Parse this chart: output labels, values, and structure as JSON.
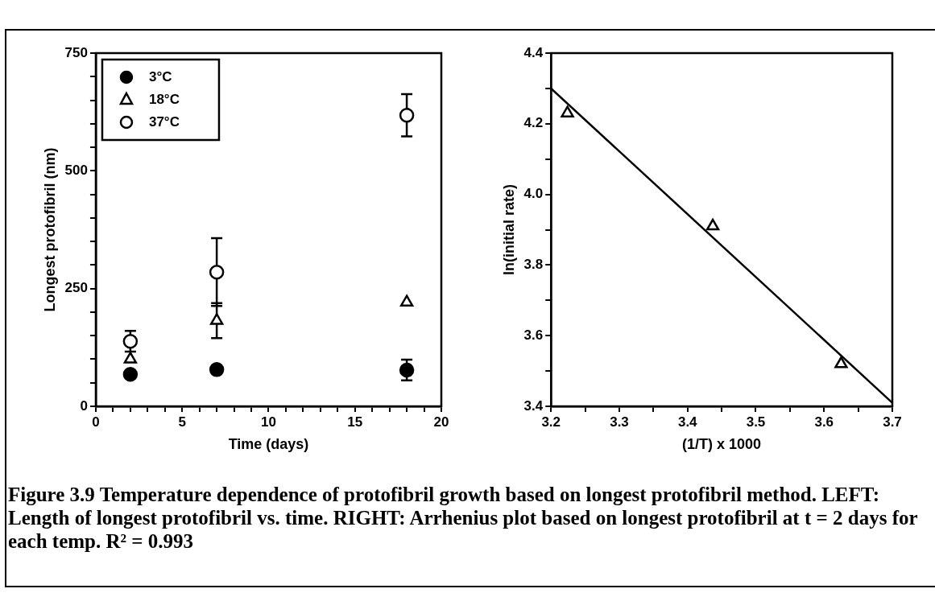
{
  "chart_data": [
    {
      "type": "scatter",
      "xlabel": "Time (days)",
      "ylabel": "Longest protofibril (nm)",
      "xlim": [
        0,
        20
      ],
      "ylim": [
        0,
        750
      ],
      "xticks": [
        0,
        {
          "value": 1,
          "label": null
        },
        {
          "value": 2,
          "label": null
        },
        {
          "value": 3,
          "label": null
        },
        {
          "value": 4,
          "label": null
        },
        5,
        {
          "value": 6,
          "label": null
        },
        {
          "value": 7,
          "label": null
        },
        {
          "value": 8,
          "label": null
        },
        {
          "value": 9,
          "label": null
        },
        10,
        {
          "value": 11,
          "label": null
        },
        {
          "value": 12,
          "label": null
        },
        {
          "value": 13,
          "label": null
        },
        {
          "value": 14,
          "label": null
        },
        15,
        {
          "value": 16,
          "label": null
        },
        {
          "value": 17,
          "label": null
        },
        {
          "value": 18,
          "label": null
        },
        {
          "value": 19,
          "label": null
        },
        20
      ],
      "yticks": [
        0,
        {
          "value": 50,
          "label": null
        },
        {
          "value": 100,
          "label": null
        },
        {
          "value": 150,
          "label": null
        },
        {
          "value": 200,
          "label": null
        },
        250,
        {
          "value": 300,
          "label": null
        },
        {
          "value": 350,
          "label": null
        },
        {
          "value": 400,
          "label": null
        },
        {
          "value": 450,
          "label": null
        },
        500,
        {
          "value": 550,
          "label": null
        },
        {
          "value": 600,
          "label": null
        },
        {
          "value": 650,
          "label": null
        },
        {
          "value": 700,
          "label": null
        },
        750
      ],
      "grid": false,
      "legend": "top left",
      "x": [
        2,
        7,
        18
      ],
      "series": [
        {
          "name": "3°C",
          "color": "#000000",
          "marker": "circle",
          "values": [
            68,
            78,
            77
          ],
          "errors": [
            null,
            null,
            22
          ]
        },
        {
          "name": "18°C",
          "color": "#000000",
          "marker": "triangle",
          "values": [
            100,
            182,
            221
          ],
          "errors": [
            null,
            37,
            null
          ]
        },
        {
          "name": "37°C",
          "color": "#000000",
          "marker": "circle",
          "values": [
            138,
            285,
            618
          ],
          "errors": [
            22,
            72,
            45
          ]
        }
      ],
      "annotations": [
        "Figure 3.9  Temperature dependence of protofibril growth based on longest protofibril method.  LEFT: Length of longest protofibril vs. time.  RIGHT: Arrhenius plot based on longest protofibril at t = 2 days for each temp.  R² = 0.993"
      ]
    },
    {
      "type": "scatter",
      "xlabel": "(1/T) x 1000",
      "ylabel": "ln(initial rate)",
      "xlim": [
        3.2,
        3.7
      ],
      "ylim": [
        3.4,
        4.4
      ],
      "xticks": [
        3.2,
        {
          "value": 3.25,
          "label": null
        },
        3.3,
        {
          "value": 3.35,
          "label": null
        },
        3.4,
        {
          "value": 3.45,
          "label": null
        },
        3.5,
        {
          "value": 3.55,
          "label": null
        },
        3.6,
        {
          "value": 3.65,
          "label": null
        },
        3.7
      ],
      "yticks": [
        3.4,
        {
          "value": 3.5,
          "label": null
        },
        3.6,
        {
          "value": 3.7,
          "label": null
        },
        3.8,
        {
          "value": 3.9,
          "label": null
        },
        {
          "value": 4,
          "label": "4.0"
        },
        {
          "value": 4.1,
          "label": null
        },
        4.2,
        {
          "value": 4.3,
          "label": null
        },
        4.4
      ],
      "grid": false,
      "series": [
        {
          "type": "scatter",
          "color": "#000000",
          "marker": "triangle",
          "x": [
            3.224,
            3.437,
            3.625
          ],
          "values": [
            4.23,
            3.91,
            3.52
          ]
        },
        {
          "type": "line",
          "color": "#000000",
          "marker": "none",
          "x": [
            3.2,
            3.7
          ],
          "values": [
            4.3,
            3.41
          ]
        }
      ]
    }
  ]
}
